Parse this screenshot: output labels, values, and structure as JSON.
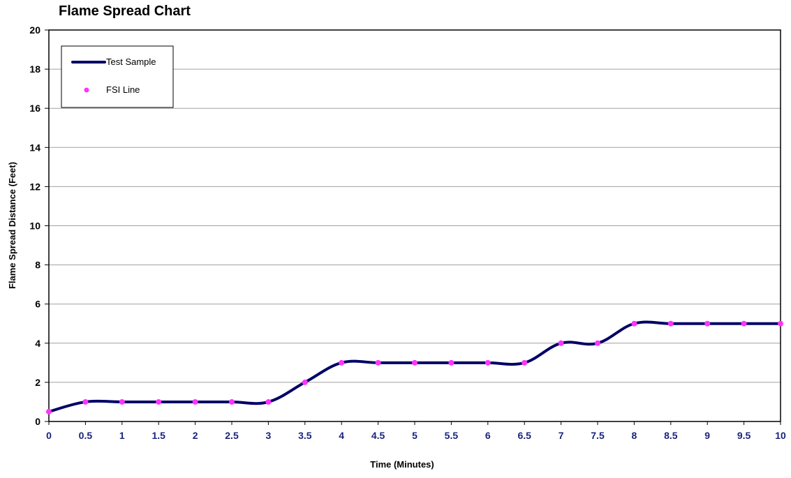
{
  "chart_data": {
    "type": "line",
    "title": "Flame Spread Chart",
    "xlabel": "Time (Minutes)",
    "ylabel": "Flame Spread Distance (Feet)",
    "xlim": [
      0,
      10
    ],
    "ylim": [
      0,
      20
    ],
    "x_ticks": [
      "0",
      "0.5",
      "1",
      "1.5",
      "2",
      "2.5",
      "3",
      "3.5",
      "4",
      "4.5",
      "5",
      "5.5",
      "6",
      "6.5",
      "7",
      "7.5",
      "8",
      "8.5",
      "9",
      "9.5",
      "10"
    ],
    "y_ticks": [
      "0",
      "2",
      "4",
      "6",
      "8",
      "10",
      "12",
      "14",
      "16",
      "18",
      "20"
    ],
    "grid": "horizontal",
    "legend": "top-left",
    "series": [
      {
        "name": "Test Sample",
        "color": "#000066",
        "style": "smooth-line",
        "x": [
          0,
          0.5,
          1,
          1.5,
          2,
          2.5,
          3,
          3.5,
          4,
          4.5,
          5,
          5.5,
          6,
          6.5,
          7,
          7.5,
          8,
          8.5,
          9,
          9.5,
          10
        ],
        "values": [
          0.5,
          1,
          1,
          1,
          1,
          1,
          1,
          2,
          3,
          3,
          3,
          3,
          3,
          3,
          4,
          4,
          5,
          5,
          5,
          5,
          5
        ]
      },
      {
        "name": "FSI Line",
        "color": "#ff33ff",
        "style": "markers",
        "x": [
          0,
          0.5,
          1,
          1.5,
          2,
          2.5,
          3,
          3.5,
          4,
          4.5,
          5,
          5.5,
          6,
          6.5,
          7,
          7.5,
          8,
          8.5,
          9,
          9.5,
          10
        ],
        "values": [
          0.5,
          1,
          1,
          1,
          1,
          1,
          1,
          2,
          3,
          3,
          3,
          3,
          3,
          3,
          4,
          4,
          5,
          5,
          5,
          5,
          5
        ]
      }
    ]
  }
}
